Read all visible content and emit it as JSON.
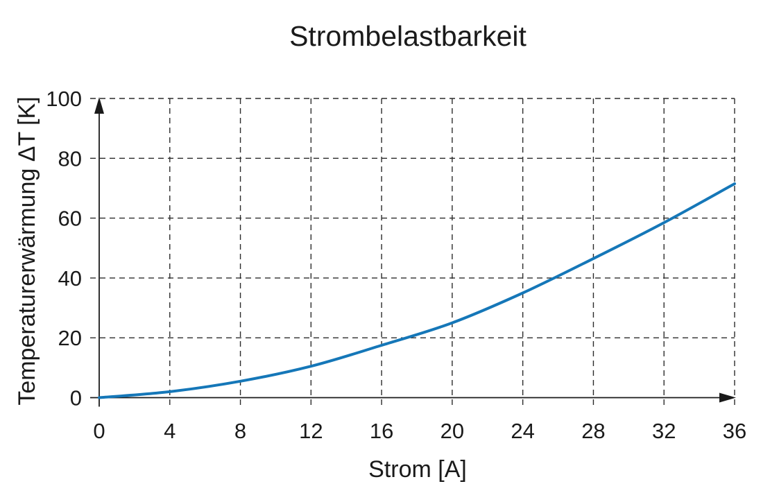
{
  "chart": {
    "title": "Strombelastbarkeit",
    "xlabel": "Strom [A]",
    "ylabel": "Temperaturerwärmung ΔT [K]"
  },
  "chart_data": {
    "type": "line",
    "title": "Strombelastbarkeit",
    "xlabel": "Strom [A]",
    "ylabel": "Temperaturerwärmung ΔT [K]",
    "x": [
      0,
      4,
      8,
      12,
      16,
      20,
      24,
      28,
      32,
      36
    ],
    "y": [
      0,
      2,
      5.5,
      10.5,
      17.5,
      25,
      35,
      46.5,
      58.5,
      71.5
    ],
    "xlim": [
      0,
      36
    ],
    "ylim": [
      0,
      100
    ],
    "xticks": [
      0,
      4,
      8,
      12,
      16,
      20,
      24,
      28,
      32,
      36
    ],
    "yticks": [
      0,
      20,
      40,
      60,
      80,
      100
    ],
    "grid": "dashed",
    "legend": "none",
    "line_color": "#1577b8",
    "axis_color": "#1a1a1a",
    "grid_color": "#2b2b2b",
    "smooth": true
  }
}
